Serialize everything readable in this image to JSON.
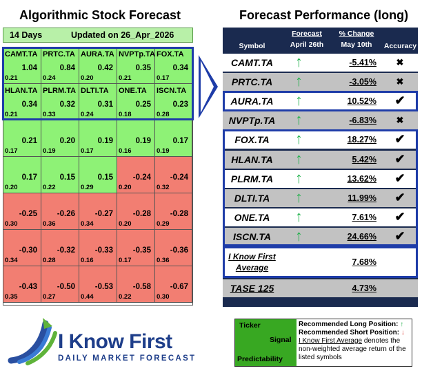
{
  "left_title": "Algorithmic Stock Forecast",
  "right_title": "Forecast Performance (long)",
  "grid_header": {
    "days": "14 Days",
    "updated": "Updated on 26_Apr_2026"
  },
  "grid_rows": [
    [
      {
        "symbol": "CAMT.TA",
        "signal": "1.04",
        "predictability": "0.21",
        "color": "green"
      },
      {
        "symbol": "PRTC.TA",
        "signal": "0.84",
        "predictability": "0.24",
        "color": "green"
      },
      {
        "symbol": "AURA.TA",
        "signal": "0.42",
        "predictability": "0.20",
        "color": "green"
      },
      {
        "symbol": "NVPTp.TA",
        "signal": "0.35",
        "predictability": "0.21",
        "color": "green"
      },
      {
        "symbol": "FOX.TA",
        "signal": "0.34",
        "predictability": "0.17",
        "color": "green"
      }
    ],
    [
      {
        "symbol": "HLAN.TA",
        "signal": "0.34",
        "predictability": "0.21",
        "color": "green"
      },
      {
        "symbol": "PLRM.TA",
        "signal": "0.32",
        "predictability": "0.33",
        "color": "green"
      },
      {
        "symbol": "DLTI.TA",
        "signal": "0.31",
        "predictability": "0.24",
        "color": "green"
      },
      {
        "symbol": "ONE.TA",
        "signal": "0.25",
        "predictability": "0.18",
        "color": "green"
      },
      {
        "symbol": "ISCN.TA",
        "signal": "0.23",
        "predictability": "0.28",
        "color": "green"
      }
    ],
    [
      {
        "symbol": "",
        "signal": "0.21",
        "predictability": "0.17",
        "color": "green"
      },
      {
        "symbol": "",
        "signal": "0.20",
        "predictability": "0.19",
        "color": "green"
      },
      {
        "symbol": "",
        "signal": "0.19",
        "predictability": "0.17",
        "color": "green"
      },
      {
        "symbol": "",
        "signal": "0.19",
        "predictability": "0.16",
        "color": "green"
      },
      {
        "symbol": "",
        "signal": "0.17",
        "predictability": "0.19",
        "color": "green"
      }
    ],
    [
      {
        "symbol": "",
        "signal": "0.17",
        "predictability": "0.20",
        "color": "green"
      },
      {
        "symbol": "",
        "signal": "0.15",
        "predictability": "0.22",
        "color": "green"
      },
      {
        "symbol": "",
        "signal": "0.15",
        "predictability": "0.29",
        "color": "green"
      },
      {
        "symbol": "",
        "signal": "-0.24",
        "predictability": "0.20",
        "color": "red"
      },
      {
        "symbol": "",
        "signal": "-0.24",
        "predictability": "0.32",
        "color": "red"
      }
    ],
    [
      {
        "symbol": "",
        "signal": "-0.25",
        "predictability": "0.30",
        "color": "red"
      },
      {
        "symbol": "",
        "signal": "-0.26",
        "predictability": "0.36",
        "color": "red"
      },
      {
        "symbol": "",
        "signal": "-0.27",
        "predictability": "0.34",
        "color": "red"
      },
      {
        "symbol": "",
        "signal": "-0.28",
        "predictability": "0.20",
        "color": "red"
      },
      {
        "symbol": "",
        "signal": "-0.28",
        "predictability": "0.29",
        "color": "red"
      }
    ],
    [
      {
        "symbol": "",
        "signal": "-0.30",
        "predictability": "0.34",
        "color": "red"
      },
      {
        "symbol": "",
        "signal": "-0.32",
        "predictability": "0.28",
        "color": "red"
      },
      {
        "symbol": "",
        "signal": "-0.33",
        "predictability": "0.16",
        "color": "red"
      },
      {
        "symbol": "",
        "signal": "-0.35",
        "predictability": "0.17",
        "color": "red"
      },
      {
        "symbol": "",
        "signal": "-0.36",
        "predictability": "0.36",
        "color": "red"
      }
    ],
    [
      {
        "symbol": "",
        "signal": "-0.43",
        "predictability": "0.35",
        "color": "red"
      },
      {
        "symbol": "",
        "signal": "-0.50",
        "predictability": "0.27",
        "color": "red"
      },
      {
        "symbol": "",
        "signal": "-0.53",
        "predictability": "0.44",
        "color": "red"
      },
      {
        "symbol": "",
        "signal": "-0.58",
        "predictability": "0.22",
        "color": "red"
      },
      {
        "symbol": "",
        "signal": "-0.67",
        "predictability": "0.30",
        "color": "red"
      }
    ]
  ],
  "perf_headers": {
    "symbol": "Symbol",
    "forecast_l1": "Forecast",
    "forecast_l2": "April 26th",
    "change_l1": "% Change",
    "change_l2": "May 10th",
    "accuracy": "Accuracy"
  },
  "perf_rows": [
    {
      "symbol": "CAMT.TA",
      "change": "-5.41%",
      "correct": false
    },
    {
      "symbol": "PRTC.TA",
      "change": "-3.05%",
      "correct": false
    },
    {
      "symbol": "AURA.TA",
      "change": "10.52%",
      "correct": true
    },
    {
      "symbol": "NVPTp.TA",
      "change": "-6.83%",
      "correct": false
    },
    {
      "symbol": "FOX.TA",
      "change": "18.27%",
      "correct": true
    },
    {
      "symbol": "HLAN.TA",
      "change": "5.42%",
      "correct": true
    },
    {
      "symbol": "PLRM.TA",
      "change": "13.62%",
      "correct": true
    },
    {
      "symbol": "DLTI.TA",
      "change": "11.99%",
      "correct": true
    },
    {
      "symbol": "ONE.TA",
      "change": "7.61%",
      "correct": true
    },
    {
      "symbol": "ISCN.TA",
      "change": "24.66%",
      "correct": true
    }
  ],
  "average_row": {
    "label_l1": "I Know First",
    "label_l2": "Average",
    "change": "7.68%"
  },
  "benchmark_row": {
    "label": "TASE 125",
    "change": "4.73%"
  },
  "logo": {
    "name": "I Know First",
    "tagline": "Daily Market Forecast"
  },
  "legend": {
    "ticker": "Ticker",
    "signal": "Signal",
    "predictability": "Predictability",
    "long_text": "Recommended Long Position:",
    "short_text": "Recommended Short Position:",
    "avg_link": "I Know First Average",
    "avg_text": " denotes the non-weighted average return of the listed symbols"
  },
  "colors": {
    "positive": "#8ef276",
    "negative": "#f27e72",
    "highlight": "#1e3ca8",
    "table_bg": "#1a2a4f",
    "up_arrow": "#22b14c",
    "down_arrow": "#e0403a"
  }
}
